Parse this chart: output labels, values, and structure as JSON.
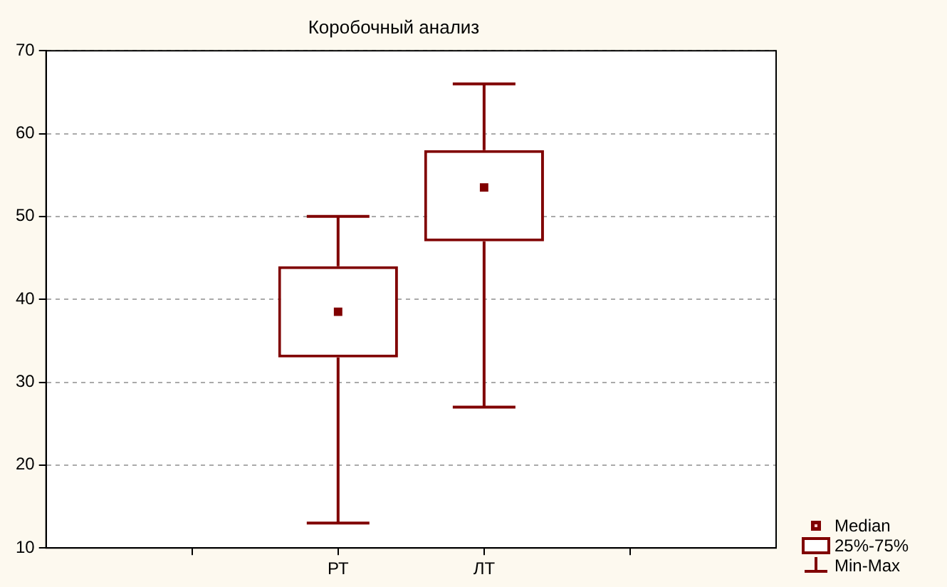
{
  "chart_data": {
    "type": "box",
    "title": "Коробочный анализ",
    "categories": [
      "РТ",
      "ЛТ"
    ],
    "series": [
      {
        "color": "#800000",
        "boxes": [
          {
            "low": 13,
            "q1": 33,
            "median": 38.5,
            "q3": 44,
            "high": 50
          },
          {
            "low": 27,
            "q1": 47,
            "median": 53.5,
            "q3": 58,
            "high": 66
          }
        ]
      }
    ],
    "ylim": [
      10,
      70
    ],
    "yticks": [
      10,
      20,
      30,
      40,
      50,
      60,
      70
    ],
    "grid": "y",
    "annotations": [
      "Median",
      "25%-75%",
      "Min-Max"
    ]
  }
}
